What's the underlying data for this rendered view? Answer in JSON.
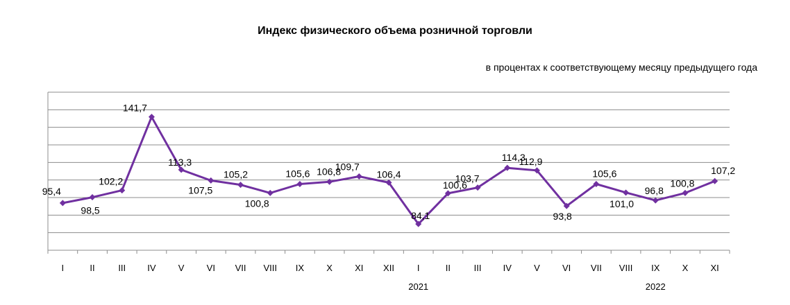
{
  "title": "Индекс физического объема розничной торговли",
  "subtitle": "в процентах к соответствующему месяцу предыдущего года",
  "chart_data": {
    "type": "line",
    "title": "Индекс физического объема розничной торговли",
    "subtitle": "в процентах к соответствующему месяцу предыдущего года",
    "categories": [
      "I",
      "II",
      "III",
      "IV",
      "V",
      "VI",
      "VII",
      "VIII",
      "IX",
      "X",
      "XI",
      "XII",
      "I",
      "II",
      "III",
      "IV",
      "V",
      "VI",
      "VII",
      "VIII",
      "IX",
      "X",
      "XI"
    ],
    "year_labels": [
      {
        "label": "2021",
        "index": 12
      },
      {
        "label": "2022",
        "index": 20
      }
    ],
    "series": [
      {
        "color": "#7030a0",
        "values": [
          95.4,
          98.5,
          102.2,
          141.7,
          113.3,
          107.5,
          105.2,
          100.8,
          105.6,
          106.8,
          109.7,
          106.4,
          84.1,
          100.6,
          103.7,
          114.3,
          112.9,
          93.8,
          105.6,
          101.0,
          96.8,
          100.8,
          107.2
        ],
        "labels": [
          "95,4",
          "98,5",
          "102,2",
          "141,7",
          "113,3",
          "107,5",
          "105,2",
          "100,8",
          "105,6",
          "106,8",
          "109,7",
          "106,4",
          "84,1",
          "100,6",
          "103,7",
          "114,3",
          "112,9",
          "93,8",
          "105,6",
          "101,0",
          "96,8",
          "100,8",
          "107,2"
        ]
      }
    ],
    "ylim": [
      70,
      155
    ],
    "grid": true,
    "legend": "none"
  }
}
